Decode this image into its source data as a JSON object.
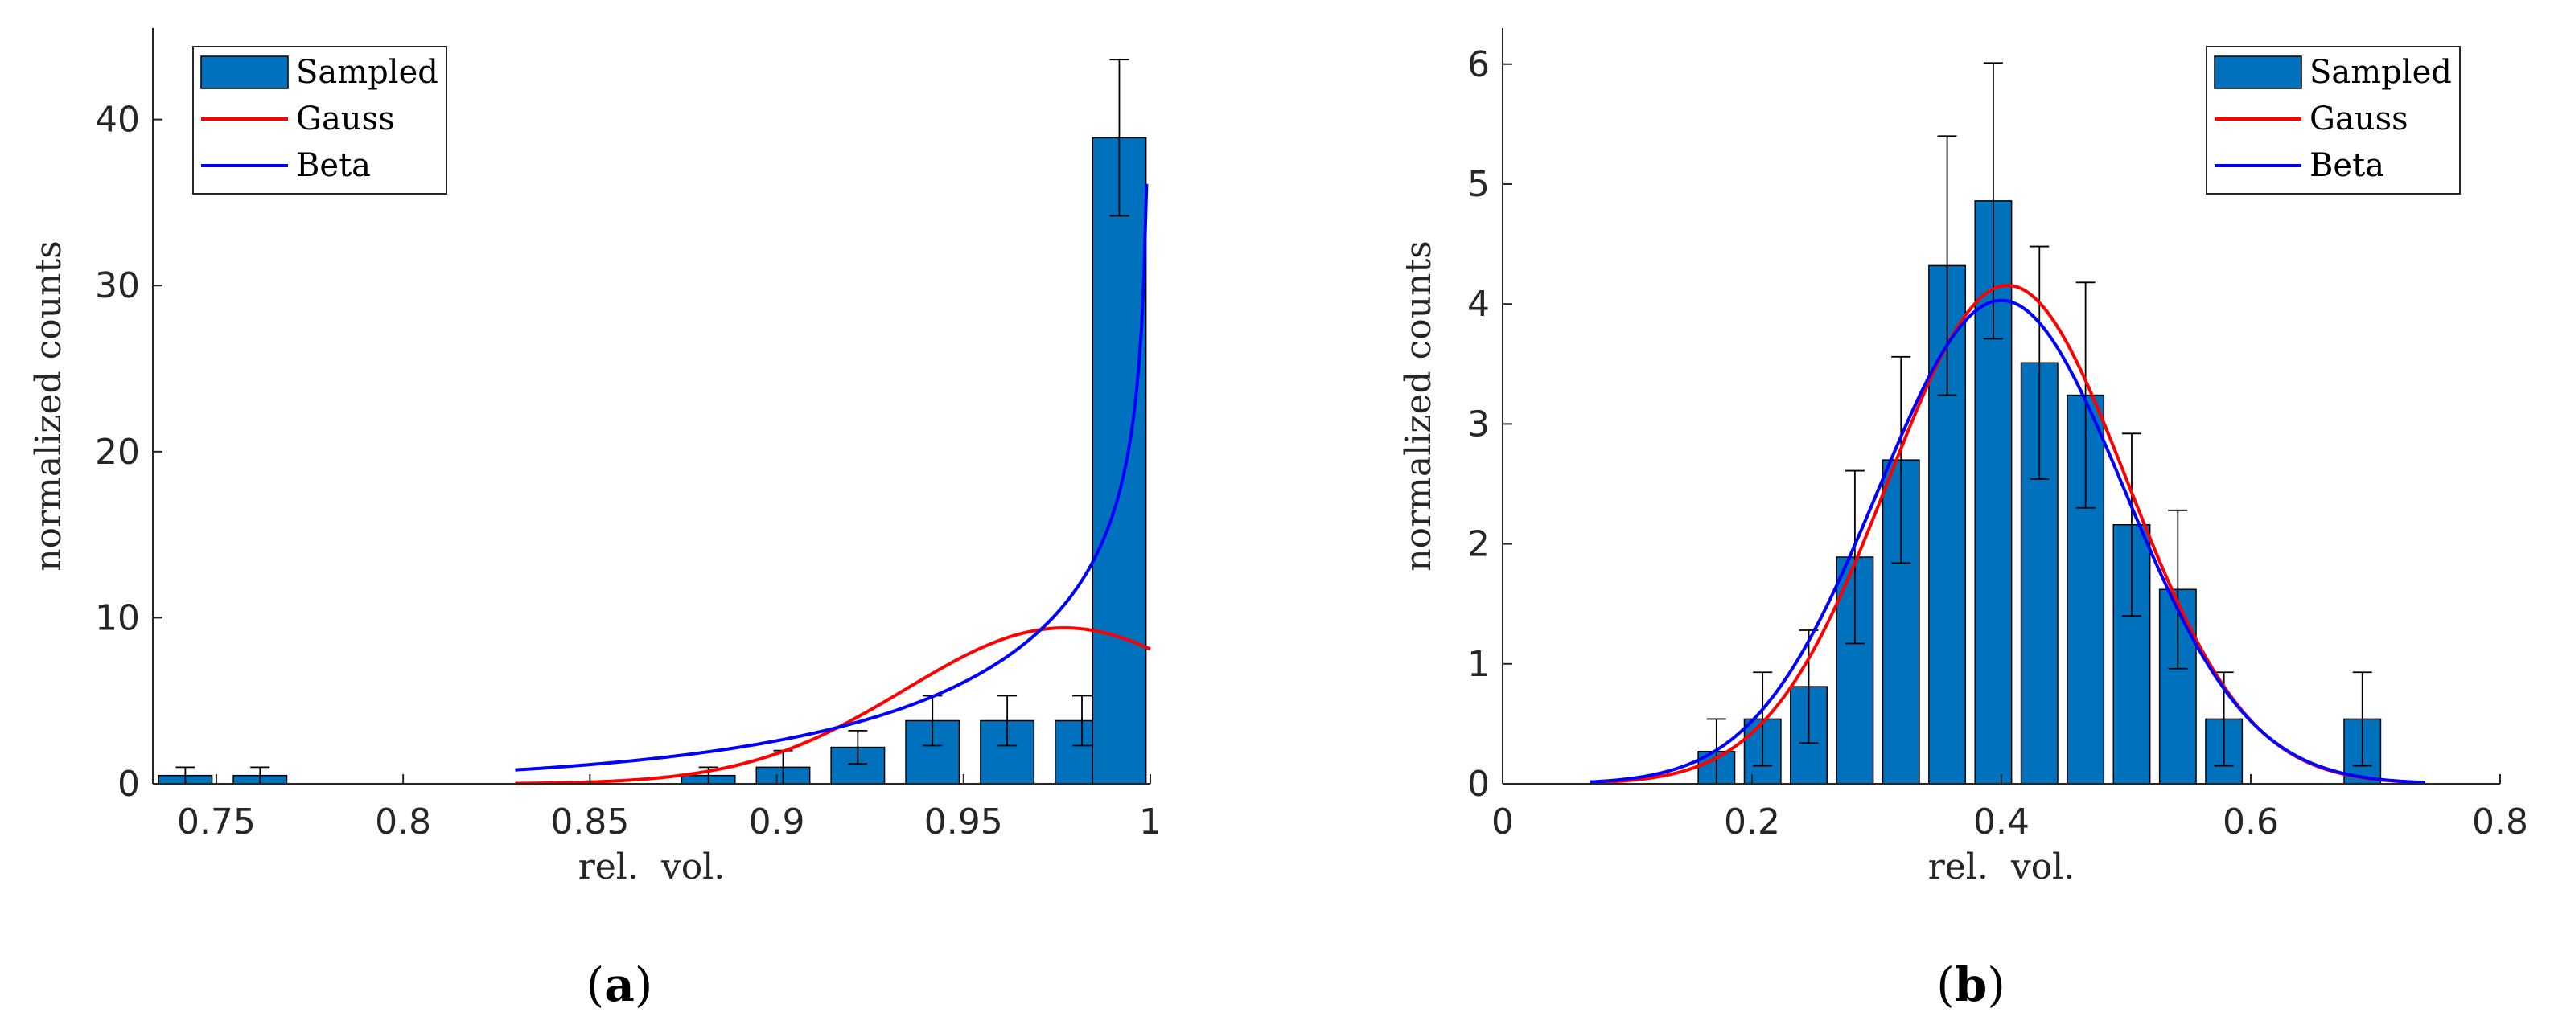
{
  "colors": {
    "bar": "#0072BD",
    "gauss": "#FF0000",
    "beta": "#0000FF",
    "axis": "#262626",
    "error": "#000000"
  },
  "chart_data": [
    {
      "type": "bar",
      "caption_open": "(",
      "caption_letter": "a",
      "caption_close": ")",
      "xlabel": "rel.  vol.",
      "ylabel": "normalized counts",
      "xlim": [
        0.733,
        1.0
      ],
      "ylim": [
        0,
        45.5
      ],
      "xticks": [
        0.75,
        0.8,
        0.85,
        0.9,
        0.95,
        1
      ],
      "xtick_labels": [
        "0.75",
        "0.8",
        "0.85",
        "0.9",
        "0.95",
        "1"
      ],
      "yticks": [
        0,
        10,
        20,
        30,
        40
      ],
      "ytick_labels": [
        "0",
        "10",
        "20",
        "30",
        "40"
      ],
      "legend": {
        "position": "top-left",
        "entries": [
          "Sampled",
          "Gauss",
          "Beta"
        ]
      },
      "bar_width": 0.0143,
      "bars": {
        "centers": [
          0.7417,
          0.7617,
          0.7817,
          0.8017,
          0.8217,
          0.8417,
          0.8617,
          0.8817,
          0.9017,
          0.9217,
          0.9417,
          0.9617,
          0.9817,
          0.9917
        ],
        "values": [
          0.5,
          0.5,
          0,
          0,
          0,
          0,
          0,
          0.5,
          1.0,
          2.2,
          3.8,
          3.8,
          3.8,
          38.9
        ],
        "errors": [
          0.5,
          0.5,
          0,
          0,
          0,
          0,
          0,
          0.5,
          1.0,
          1.0,
          1.5,
          1.5,
          1.5,
          4.7
        ]
      },
      "series": [
        {
          "name": "Gauss",
          "x_range": [
            0.83,
            1.0
          ],
          "mu": 0.977,
          "sigma": 0.0425
        },
        {
          "name": "Beta",
          "x_range": [
            0.83,
            0.999
          ],
          "alpha": 13.0,
          "beta": 0.7
        }
      ]
    },
    {
      "type": "bar",
      "caption_open": "(",
      "caption_letter": "b",
      "caption_close": ")",
      "xlabel": "rel.  vol.",
      "ylabel": "normalized counts",
      "xlim": [
        0,
        0.8
      ],
      "ylim": [
        0,
        6.3
      ],
      "xticks": [
        0,
        0.2,
        0.4,
        0.6,
        0.8
      ],
      "xtick_labels": [
        "0",
        "0.2",
        "0.4",
        "0.6",
        "0.8"
      ],
      "yticks": [
        0,
        1,
        2,
        3,
        4,
        5,
        6
      ],
      "ytick_labels": [
        "0",
        "1",
        "2",
        "3",
        "4",
        "5",
        "6"
      ],
      "legend": {
        "position": "top-right",
        "entries": [
          "Sampled",
          "Gauss",
          "Beta"
        ]
      },
      "bar_width": 0.0293,
      "bars": {
        "centers": [
          0.1715,
          0.2085,
          0.2455,
          0.2825,
          0.3195,
          0.3565,
          0.3935,
          0.4305,
          0.4675,
          0.5045,
          0.5415,
          0.5785,
          0.6155,
          0.6525,
          0.6895
        ],
        "values": [
          0.27,
          0.54,
          0.81,
          1.89,
          2.7,
          4.32,
          4.86,
          3.51,
          3.24,
          2.16,
          1.62,
          0.54,
          0,
          0,
          0.54
        ],
        "errors": [
          0.27,
          0.39,
          0.47,
          0.72,
          0.86,
          1.08,
          1.15,
          0.97,
          0.94,
          0.76,
          0.66,
          0.39,
          0,
          0,
          0.39
        ]
      },
      "series": [
        {
          "name": "Gauss",
          "x_range": [
            0.07,
            0.74
          ],
          "mu": 0.405,
          "sigma": 0.096
        },
        {
          "name": "Beta",
          "x_range": [
            0.07,
            0.74
          ],
          "mu": 0.4,
          "sigma": 0.099
        }
      ]
    }
  ]
}
